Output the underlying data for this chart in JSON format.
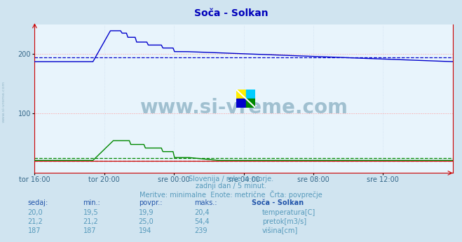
{
  "title": "Soča - Solkan",
  "title_color": "#0000bb",
  "bg_color": "#d0e4f0",
  "plot_bg_color": "#e8f4fc",
  "grid_color_h": "#ff9999",
  "grid_color_v": "#ccddee",
  "x_labels": [
    "tor 16:00",
    "tor 20:00",
    "sre 00:00",
    "sre 04:00",
    "sre 08:00",
    "sre 12:00"
  ],
  "x_ticks_norm": [
    0.0,
    0.1667,
    0.3333,
    0.5,
    0.6667,
    0.8333
  ],
  "y_ticks": [
    100,
    200
  ],
  "y_max": 250,
  "y_min": 0,
  "color_temp": "#cc0000",
  "color_flow": "#008800",
  "color_level": "#0000cc",
  "avg_temp": 19.9,
  "avg_flow": 25.0,
  "avg_level": 194,
  "footer_lines": [
    "Slovenija / reke in morje.",
    "zadnji dan / 5 minut.",
    "Meritve: minimalne  Enote: metrične  Črta: povprečje"
  ],
  "footer_color": "#5599bb",
  "table_header_color": "#2255aa",
  "table_headers": [
    "sedaj:",
    "min.:",
    "povpr.:",
    "maks.:",
    "Soča - Solkan"
  ],
  "table_rows": [
    [
      "20,0",
      "19,5",
      "19,9",
      "20,4",
      "temperatura[C]",
      "#cc0000"
    ],
    [
      "21,2",
      "21,2",
      "25,0",
      "54,4",
      "pretok[m3/s]",
      "#008800"
    ],
    [
      "187",
      "187",
      "194",
      "239",
      "višina[cm]",
      "#0000cc"
    ]
  ],
  "watermark": "www.si-vreme.com",
  "watermark_color": "#99bbcc",
  "axis_label_color": "#336688",
  "border_color": "#cc0000",
  "logo_colors": [
    "#ffee00",
    "#00ccff",
    "#0000cc",
    "#008800"
  ],
  "left_label": "www.si-vreme.com",
  "left_label_color": "#99bbcc"
}
